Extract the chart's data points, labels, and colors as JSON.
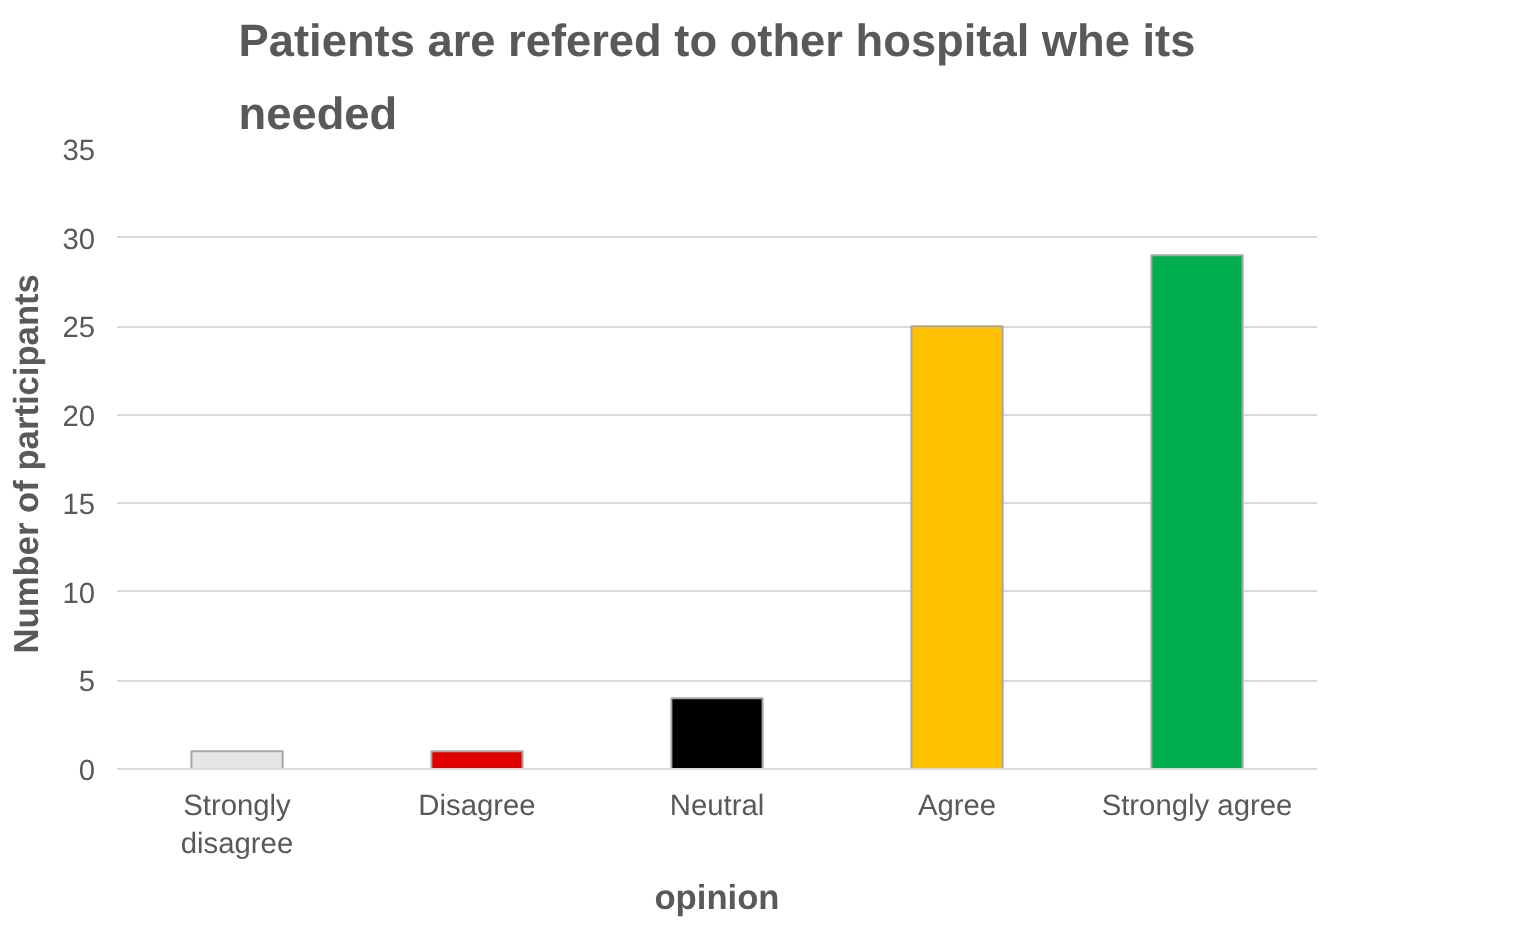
{
  "chart_data": {
    "type": "bar",
    "title": "Patients are refered to other hospital whe its needed",
    "xlabel": "opinion",
    "ylabel": "Number  of participants",
    "categories": [
      "Strongly disagree",
      "Disagree",
      "Neutral",
      "Agree",
      "Strongly agree"
    ],
    "values": [
      1,
      1,
      4,
      25,
      29
    ],
    "colors": [
      "#e7e6e6",
      "#e00000",
      "#000000",
      "#ffc000",
      "#00b050"
    ],
    "ylim": [
      0,
      35
    ],
    "yticks": [
      0,
      5,
      10,
      15,
      20,
      25,
      30,
      35
    ],
    "grid": "y"
  }
}
